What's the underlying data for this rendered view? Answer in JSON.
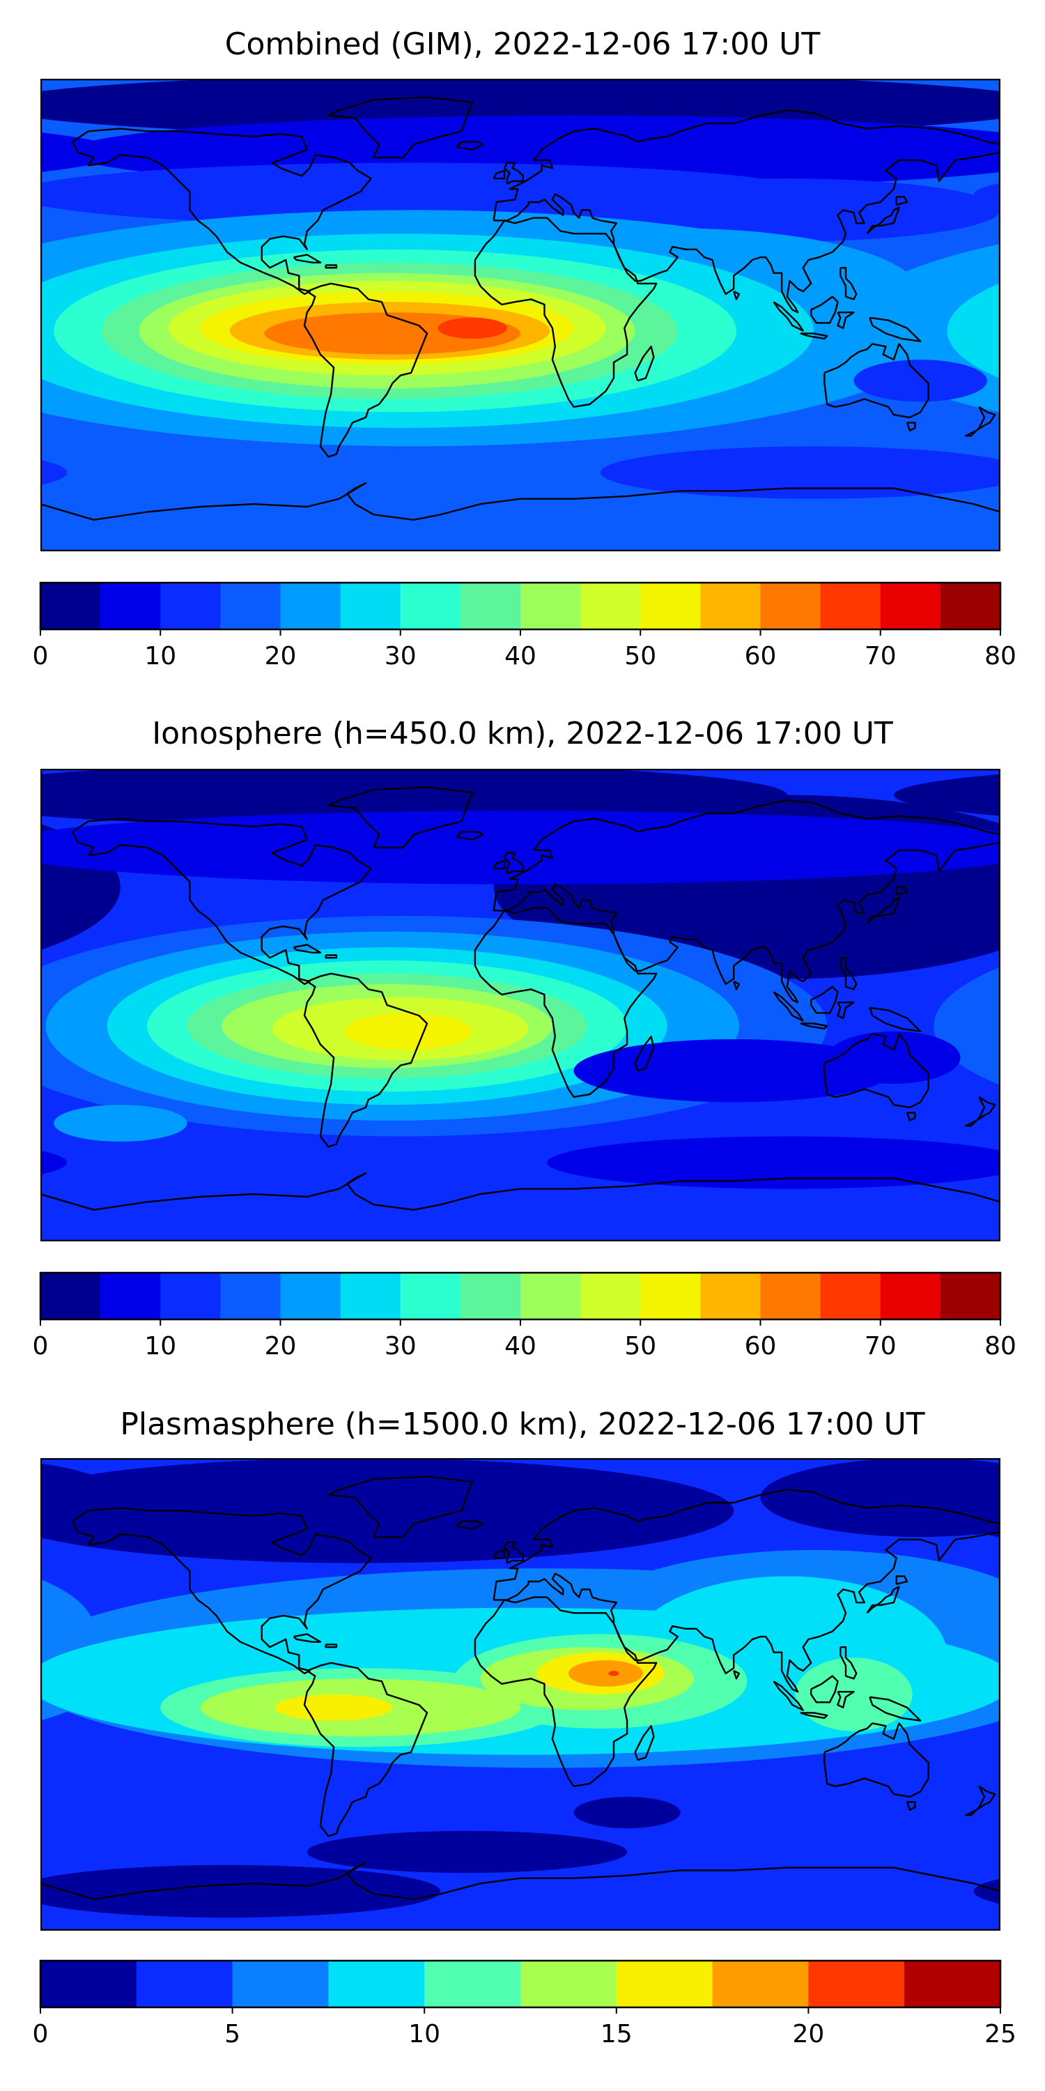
{
  "chart_data": [
    {
      "type": "heatmap",
      "title": "Combined (GIM), 2022-12-06 17:00 UT",
      "colorbar": {
        "ticks": [
          "0",
          "10",
          "20",
          "30",
          "40",
          "50",
          "60",
          "70",
          "80"
        ],
        "tick_values": [
          0,
          10,
          20,
          30,
          40,
          50,
          60,
          70,
          80
        ],
        "range": [
          0,
          80
        ],
        "levels": [
          0,
          5,
          10,
          15,
          20,
          25,
          30,
          35,
          40,
          45,
          50,
          55,
          60,
          65,
          70,
          75,
          80
        ],
        "colors": [
          "#00008f",
          "#0000e8",
          "#0a2cff",
          "#0a5cff",
          "#009cff",
          "#00dcf4",
          "#2cffd0",
          "#5cf59c",
          "#9cff5c",
          "#d0ff2c",
          "#f4f400",
          "#ffb400",
          "#ff7800",
          "#ff3800",
          "#e80000",
          "#9c0000"
        ]
      },
      "field": {
        "background_level": 3,
        "blobs": [
          {
            "level": 0,
            "lon": 0,
            "lat": 80,
            "rx": 200,
            "ry": 12
          },
          {
            "level": 1,
            "lon": 20,
            "lat": 62,
            "rx": 190,
            "ry": 14
          },
          {
            "level": 2,
            "lon": -40,
            "lat": 46,
            "rx": 150,
            "ry": 12
          },
          {
            "level": 2,
            "lon": 100,
            "lat": 40,
            "rx": 80,
            "ry": 12
          },
          {
            "level": 4,
            "lon": -40,
            "lat": -5,
            "rx": 200,
            "ry": 45
          },
          {
            "level": 4,
            "lon": 60,
            "lat": 8,
            "rx": 90,
            "ry": 25
          },
          {
            "level": 5,
            "lon": -45,
            "lat": -6,
            "rx": 155,
            "ry": 37
          },
          {
            "level": 6,
            "lon": -47,
            "lat": -6,
            "rx": 128,
            "ry": 31
          },
          {
            "level": 7,
            "lon": -49,
            "lat": -6,
            "rx": 108,
            "ry": 26
          },
          {
            "level": 8,
            "lon": -50,
            "lat": -6,
            "rx": 93,
            "ry": 22
          },
          {
            "level": 9,
            "lon": -50,
            "lat": -5,
            "rx": 82,
            "ry": 18
          },
          {
            "level": 10,
            "lon": -50,
            "lat": -5,
            "rx": 70,
            "ry": 14
          },
          {
            "level": 11,
            "lon": -49,
            "lat": -6,
            "rx": 60,
            "ry": 11
          },
          {
            "level": 12,
            "lon": -48,
            "lat": -7,
            "rx": 48,
            "ry": 8
          },
          {
            "level": 13,
            "lon": -18,
            "lat": -5,
            "rx": 13,
            "ry": 4
          },
          {
            "level": 3,
            "lon": -120,
            "lat": -55,
            "rx": 60,
            "ry": 6
          },
          {
            "level": 2,
            "lon": 110,
            "lat": -60,
            "rx": 80,
            "ry": 10
          },
          {
            "level": 2,
            "lon": 150,
            "lat": -25,
            "rx": 25,
            "ry": 8
          }
        ]
      }
    },
    {
      "type": "heatmap",
      "title": "Ionosphere  (h=450.0 km), 2022-12-06 17:00 UT",
      "colorbar": {
        "ticks": [
          "0",
          "10",
          "20",
          "30",
          "40",
          "50",
          "60",
          "70",
          "80"
        ],
        "tick_values": [
          0,
          10,
          20,
          30,
          40,
          50,
          60,
          70,
          80
        ],
        "range": [
          0,
          80
        ],
        "levels": [
          0,
          5,
          10,
          15,
          20,
          25,
          30,
          35,
          40,
          45,
          50,
          55,
          60,
          65,
          70,
          75,
          80
        ],
        "colors": [
          "#00008f",
          "#0000e8",
          "#0a2cff",
          "#0a5cff",
          "#009cff",
          "#00dcf4",
          "#2cffd0",
          "#5cf59c",
          "#9cff5c",
          "#d0ff2c",
          "#f4f400",
          "#ffb400",
          "#ff7800",
          "#ff3800",
          "#e80000",
          "#9c0000"
        ]
      },
      "field": {
        "background_level": 2,
        "blobs": [
          {
            "level": 0,
            "lon": 100,
            "lat": 45,
            "rx": 110,
            "ry": 35
          },
          {
            "level": 0,
            "lon": -60,
            "lat": 80,
            "rx": 160,
            "ry": 12
          },
          {
            "level": 1,
            "lon": 0,
            "lat": 60,
            "rx": 200,
            "ry": 14
          },
          {
            "level": 3,
            "lon": -45,
            "lat": -8,
            "rx": 160,
            "ry": 42
          },
          {
            "level": 4,
            "lon": -48,
            "lat": -8,
            "rx": 130,
            "ry": 36
          },
          {
            "level": 4,
            "lon": -150,
            "lat": -45,
            "rx": 25,
            "ry": 7
          },
          {
            "level": 5,
            "lon": -50,
            "lat": -8,
            "rx": 105,
            "ry": 30
          },
          {
            "level": 6,
            "lon": -50,
            "lat": -8,
            "rx": 90,
            "ry": 25
          },
          {
            "level": 7,
            "lon": -50,
            "lat": -8,
            "rx": 75,
            "ry": 20
          },
          {
            "level": 8,
            "lon": -50,
            "lat": -8,
            "rx": 62,
            "ry": 16
          },
          {
            "level": 9,
            "lon": -45,
            "lat": -9,
            "rx": 48,
            "ry": 12
          },
          {
            "level": 10,
            "lon": -42,
            "lat": -10,
            "rx": 24,
            "ry": 7
          },
          {
            "level": 1,
            "lon": 80,
            "lat": -25,
            "rx": 60,
            "ry": 12
          },
          {
            "level": 1,
            "lon": 100,
            "lat": -60,
            "rx": 90,
            "ry": 10
          },
          {
            "level": 1,
            "lon": 140,
            "lat": -20,
            "rx": 25,
            "ry": 10
          }
        ]
      }
    },
    {
      "type": "heatmap",
      "title": "Plasmasphere (h=1500.0 km), 2022-12-06 17:00 UT",
      "colorbar": {
        "ticks": [
          "0",
          "5",
          "10",
          "15",
          "20",
          "25"
        ],
        "tick_values": [
          0,
          5,
          10,
          15,
          20,
          25
        ],
        "range": [
          0,
          25
        ],
        "levels": [
          0,
          2.5,
          5,
          7.5,
          10,
          12.5,
          15,
          17.5,
          20,
          22.5,
          25
        ],
        "colors": [
          "#00009c",
          "#0a2cff",
          "#0a80ff",
          "#00e0f8",
          "#50ffb0",
          "#a8ff50",
          "#f8f000",
          "#ff9c00",
          "#ff3800",
          "#b00000"
        ]
      },
      "field": {
        "background_level": 1,
        "blobs": [
          {
            "level": 0,
            "lon": -60,
            "lat": 70,
            "rx": 140,
            "ry": 20
          },
          {
            "level": 0,
            "lon": 150,
            "lat": 75,
            "rx": 60,
            "ry": 15
          },
          {
            "level": 0,
            "lon": -110,
            "lat": -75,
            "rx": 80,
            "ry": 10
          },
          {
            "level": 0,
            "lon": -20,
            "lat": -60,
            "rx": 60,
            "ry": 8
          },
          {
            "level": 2,
            "lon": 10,
            "lat": 10,
            "rx": 200,
            "ry": 38
          },
          {
            "level": 2,
            "lon": 110,
            "lat": 25,
            "rx": 90,
            "ry": 30
          },
          {
            "level": 3,
            "lon": 0,
            "lat": 5,
            "rx": 185,
            "ry": 28
          },
          {
            "level": 3,
            "lon": 100,
            "lat": 15,
            "rx": 60,
            "ry": 30
          },
          {
            "level": 4,
            "lon": -60,
            "lat": -5,
            "rx": 75,
            "ry": 15
          },
          {
            "level": 4,
            "lon": 30,
            "lat": 5,
            "rx": 55,
            "ry": 18
          },
          {
            "level": 4,
            "lon": 125,
            "lat": 0,
            "rx": 22,
            "ry": 14
          },
          {
            "level": 5,
            "lon": -60,
            "lat": -5,
            "rx": 60,
            "ry": 11
          },
          {
            "level": 5,
            "lon": 25,
            "lat": 6,
            "rx": 40,
            "ry": 12
          },
          {
            "level": 6,
            "lon": -70,
            "lat": -5,
            "rx": 22,
            "ry": 5
          },
          {
            "level": 6,
            "lon": 30,
            "lat": 8,
            "rx": 24,
            "ry": 8
          },
          {
            "level": 7,
            "lon": 32,
            "lat": 8,
            "rx": 14,
            "ry": 5
          },
          {
            "level": 8,
            "lon": 35,
            "lat": 8,
            "rx": 2,
            "ry": 1
          },
          {
            "level": 0,
            "lon": 40,
            "lat": -45,
            "rx": 20,
            "ry": 6
          }
        ]
      }
    }
  ]
}
